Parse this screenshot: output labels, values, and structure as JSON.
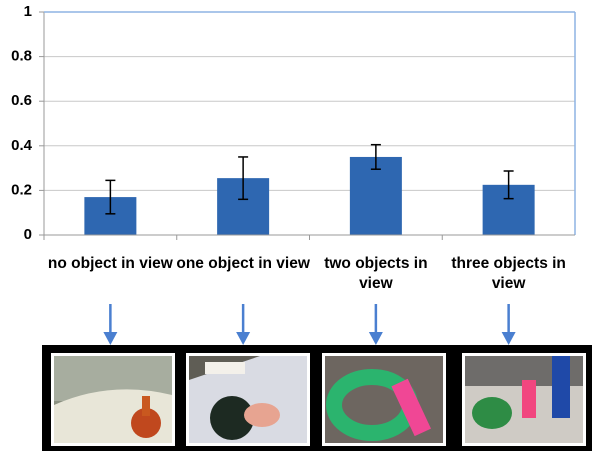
{
  "chart_data": {
    "type": "bar",
    "categories": [
      "no object in view",
      "one object in view",
      "two objects in view",
      "three objects in view"
    ],
    "values": [
      0.17,
      0.255,
      0.35,
      0.225
    ],
    "errors": [
      0.075,
      0.095,
      0.055,
      0.062
    ],
    "color": "#2e67b1",
    "ylim": [
      0,
      1
    ],
    "yticks": [
      0,
      0.2,
      0.4,
      0.6,
      0.8,
      1
    ],
    "grid": true
  }
}
